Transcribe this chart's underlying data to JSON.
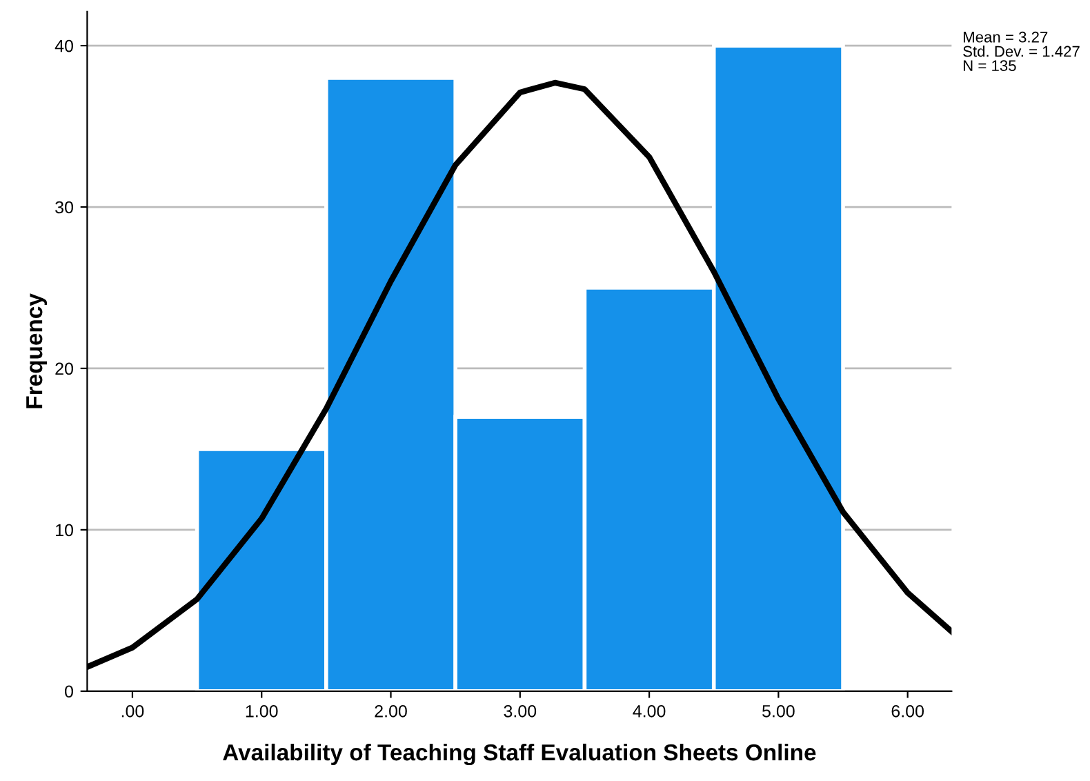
{
  "chart_data": {
    "type": "histogram",
    "xlabel": "Availability of Teaching Staff Evaluation Sheets Online",
    "ylabel": "Frequency",
    "bins": [
      0.5,
      1.5,
      2.5,
      3.5,
      4.5,
      5.5
    ],
    "values": [
      15,
      38,
      17,
      25,
      40
    ],
    "color": "#1591ea",
    "series": [
      {
        "type": "line",
        "color": "#000000",
        "x": [
          -0.35,
          0,
          0.5,
          1,
          1.5,
          2,
          2.5,
          3,
          3.27,
          3.5,
          4,
          4.5,
          5,
          5.5,
          6,
          6.34
        ],
        "values": [
          1.5,
          2.7,
          5.7,
          10.7,
          17.5,
          25.4,
          32.6,
          37.1,
          37.7,
          37.3,
          33.1,
          26.0,
          18.1,
          11.1,
          6.1,
          3.7
        ]
      }
    ],
    "xlim": [
      -0.35,
      6.34
    ],
    "ylim": [
      0,
      42.1
    ],
    "xticks": [
      {
        "value": 0,
        "label": ".00"
      },
      {
        "value": 1,
        "label": "1.00"
      },
      {
        "value": 2,
        "label": "2.00"
      },
      {
        "value": 3,
        "label": "3.00"
      },
      {
        "value": 4,
        "label": "4.00"
      },
      {
        "value": 5,
        "label": "5.00"
      },
      {
        "value": 6,
        "label": "6.00"
      }
    ],
    "yticks": [
      0,
      10,
      20,
      30,
      40
    ],
    "grid": "y",
    "legend": false,
    "annotations": [
      "Mean = 3.27",
      "Std. Dev. = 1.427",
      "N = 135"
    ]
  }
}
